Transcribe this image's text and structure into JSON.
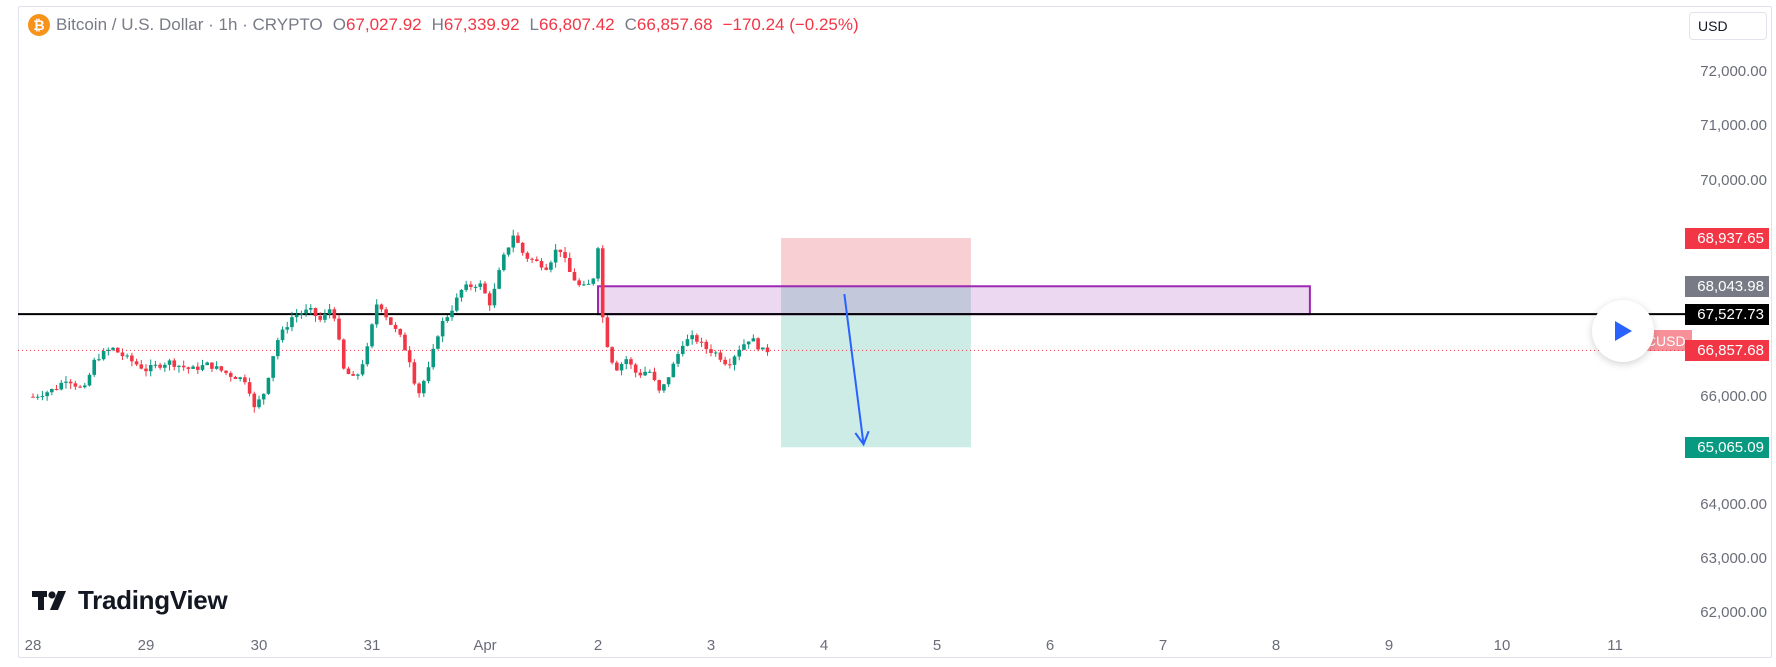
{
  "header": {
    "icon_glyph": "₿",
    "symbol": "Bitcoin / U.S. Dollar · 1h · CRYPTO",
    "ohlc": [
      {
        "k": "O",
        "v": "67,027.92"
      },
      {
        "k": "H",
        "v": "67,339.92"
      },
      {
        "k": "L",
        "v": "66,807.42"
      },
      {
        "k": "C",
        "v": "66,857.68"
      }
    ],
    "change": "−170.24 (−0.25%)"
  },
  "currency": "USD",
  "logo_text": "TradingView",
  "colors": {
    "up": "#089981",
    "down": "#f23645",
    "box_purple": "#9c27b0",
    "stop_fill": "#f8d0d4",
    "target_fill": "#cdece5",
    "arrow": "#2962ff",
    "level_line": "#000000"
  },
  "chart_data": {
    "type": "candlestick",
    "title": "",
    "ylim": [
      61500,
      72600
    ],
    "y_ticks": [
      "72,000.00",
      "71,000.00",
      "70,000.00",
      "66,000.00",
      "64,000.00",
      "63,000.00",
      "62,000.00"
    ],
    "y_tick_values": [
      72000,
      71000,
      70000,
      66000,
      64000,
      63000,
      62000
    ],
    "x_ticks": [
      "28",
      "29",
      "30",
      "31",
      "Apr",
      "2",
      "3",
      "4",
      "5",
      "6",
      "7",
      "8",
      "9",
      "10",
      "11"
    ],
    "x_tick_day_offsets": [
      0,
      1,
      2,
      3,
      4,
      5,
      6,
      7,
      8,
      9,
      10,
      11,
      12,
      13,
      14
    ],
    "price_path": [
      [
        0.0,
        66000
      ],
      [
        0.2,
        66150
      ],
      [
        0.3,
        66350
      ],
      [
        0.45,
        66100
      ],
      [
        0.55,
        66700
      ],
      [
        0.7,
        66900
      ],
      [
        0.8,
        66750
      ],
      [
        1.0,
        66500
      ],
      [
        1.2,
        66650
      ],
      [
        1.4,
        66500
      ],
      [
        1.55,
        66600
      ],
      [
        1.75,
        66400
      ],
      [
        1.9,
        66300
      ],
      [
        1.95,
        65750
      ],
      [
        2.05,
        66100
      ],
      [
        2.15,
        67000
      ],
      [
        2.3,
        67500
      ],
      [
        2.45,
        67600
      ],
      [
        2.55,
        67400
      ],
      [
        2.65,
        67700
      ],
      [
        2.75,
        66500
      ],
      [
        2.85,
        66300
      ],
      [
        2.95,
        66800
      ],
      [
        3.05,
        67800
      ],
      [
        3.15,
        67400
      ],
      [
        3.25,
        67100
      ],
      [
        3.35,
        66600
      ],
      [
        3.4,
        66000
      ],
      [
        3.5,
        66500
      ],
      [
        3.6,
        67300
      ],
      [
        3.7,
        67600
      ],
      [
        3.8,
        68000
      ],
      [
        3.95,
        68100
      ],
      [
        4.05,
        67700
      ],
      [
        4.15,
        68500
      ],
      [
        4.25,
        69000
      ],
      [
        4.35,
        68600
      ],
      [
        4.45,
        68500
      ],
      [
        4.55,
        68400
      ],
      [
        4.65,
        68800
      ],
      [
        4.75,
        68300
      ],
      [
        4.85,
        68000
      ],
      [
        4.95,
        68100
      ],
      [
        5.0,
        68800
      ],
      [
        5.05,
        67200
      ],
      [
        5.15,
        66500
      ],
      [
        5.25,
        66700
      ],
      [
        5.35,
        66400
      ],
      [
        5.45,
        66500
      ],
      [
        5.55,
        66050
      ],
      [
        5.65,
        66500
      ],
      [
        5.75,
        67000
      ],
      [
        5.85,
        67100
      ],
      [
        5.95,
        66900
      ],
      [
        6.05,
        66800
      ],
      [
        6.15,
        66600
      ],
      [
        6.25,
        66900
      ],
      [
        6.35,
        67100
      ],
      [
        6.45,
        66850
      ],
      [
        6.5,
        66858
      ]
    ],
    "current_price": 66857.68,
    "symbol_tag": "BTCUSD",
    "horizontal_level": 67527.73,
    "zone": {
      "top": 68043.98,
      "bottom": 67527.73,
      "start_day": 5.0,
      "end_day": 11.3
    },
    "position": {
      "type": "short",
      "entry": 68043.98,
      "stop": 68937.65,
      "target": 65065.09,
      "start_day": 6.62,
      "end_day": 8.3
    },
    "projection_arrow": {
      "from": [
        7.18,
        67900
      ],
      "to": [
        7.35,
        65120
      ]
    },
    "price_tags": [
      {
        "label": "68,937.65",
        "value": 68937.65,
        "bg": "#f23645"
      },
      {
        "label": "68,043.98",
        "value": 68043.98,
        "bg": "#787b86"
      },
      {
        "label": "67,527.73",
        "value": 67527.73,
        "bg": "#000000"
      },
      {
        "label": "66,857.68",
        "value": 66857.68,
        "bg": "#f23645"
      },
      {
        "label": "65,065.09",
        "value": 65065.09,
        "bg": "#089981"
      }
    ]
  }
}
